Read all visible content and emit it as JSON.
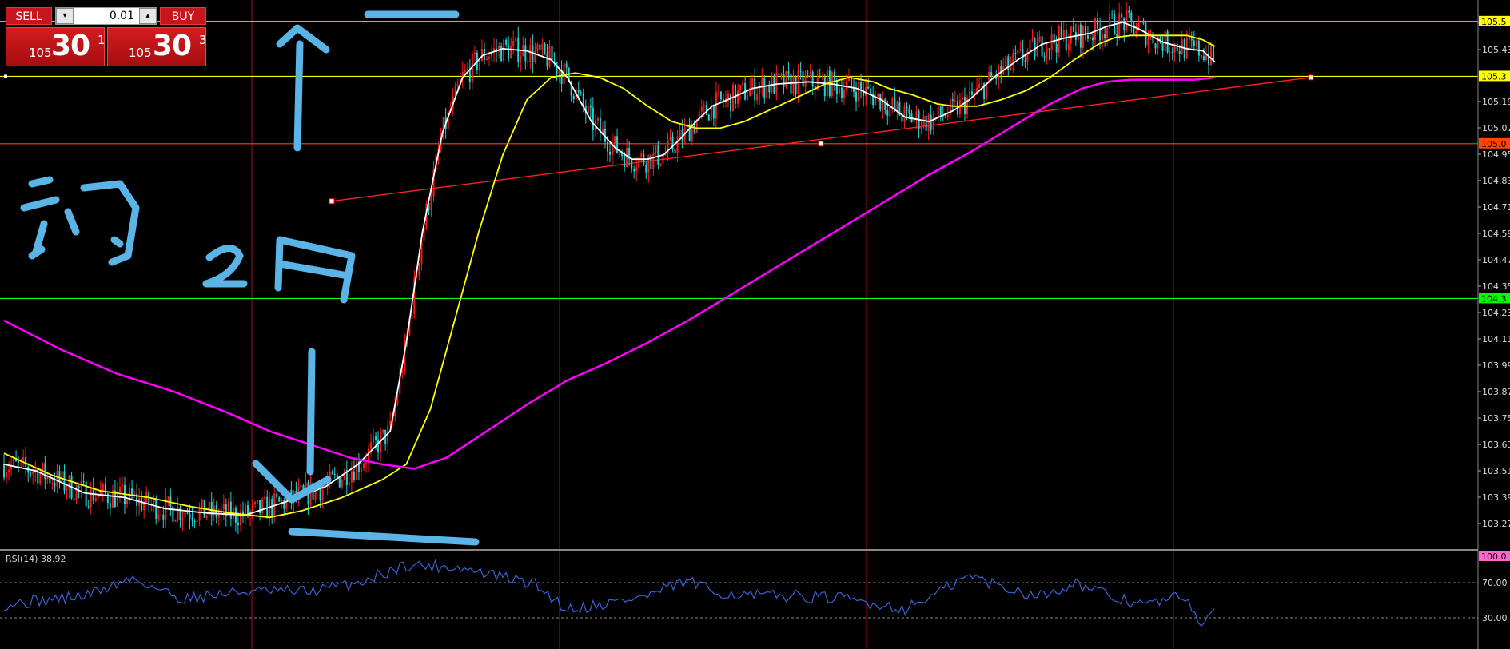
{
  "trade_panel": {
    "sell_label": "SELL",
    "buy_label": "BUY",
    "lot_size": "0.01",
    "bid": {
      "prefix": "105",
      "big": "30",
      "sup": "1"
    },
    "ask": {
      "prefix": "105",
      "big": "30",
      "sup": "3"
    }
  },
  "price_axis": {
    "tick_labels": [
      "105.55",
      "105.43",
      "105.19",
      "105.07",
      "104.95",
      "104.83",
      "104.71",
      "104.59",
      "104.47",
      "104.35",
      "104.23",
      "104.11",
      "103.99",
      "103.87",
      "103.75",
      "103.63",
      "103.51",
      "103.39",
      "103.27"
    ],
    "highlight_labels": [
      {
        "text": "105.5",
        "price": 105.553,
        "bg": "#ffff00",
        "fg": "#000000"
      },
      {
        "text": "105.3",
        "price": 105.305,
        "bg": "#ffff00",
        "fg": "#000000"
      },
      {
        "text": "105.0",
        "price": 105.0,
        "bg": "#ff4500",
        "fg": "#000000"
      },
      {
        "text": "104.3",
        "price": 104.3,
        "bg": "#00ff00",
        "fg": "#000000"
      }
    ]
  },
  "rsi": {
    "label": "RSI(14) 38.92",
    "tick_labels": [
      "100.00",
      "70.00",
      "30.00"
    ],
    "highlight_label": "100.0"
  },
  "annotation_text": "約 2 円",
  "chart_data": {
    "type": "candlestick",
    "ylim": [
      103.17,
      105.65
    ],
    "horizontal_levels": [
      {
        "price": 105.553,
        "color": "#ffff00"
      },
      {
        "price": 105.305,
        "color": "#ffff00"
      },
      {
        "price": 105.0,
        "color": "#ff4500"
      },
      {
        "price": 104.3,
        "color": "#00ff00"
      }
    ],
    "trend_line": {
      "color": "#ff2020",
      "from_price": 104.74,
      "to_price": 105.3
    },
    "moving_averages": [
      {
        "color": "#ffffff",
        "points": [
          [
            0,
            103.55
          ],
          [
            40,
            103.52
          ],
          [
            100,
            103.42
          ],
          [
            150,
            103.4
          ],
          [
            200,
            103.35
          ],
          [
            250,
            103.33
          ],
          [
            300,
            103.32
          ],
          [
            350,
            103.38
          ],
          [
            400,
            103.45
          ],
          [
            440,
            103.55
          ],
          [
            480,
            103.7
          ],
          [
            500,
            104.1
          ],
          [
            520,
            104.6
          ],
          [
            545,
            105.05
          ],
          [
            570,
            105.3
          ],
          [
            595,
            105.4
          ],
          [
            620,
            105.43
          ],
          [
            650,
            105.42
          ],
          [
            680,
            105.38
          ],
          [
            700,
            105.3
          ],
          [
            730,
            105.1
          ],
          [
            760,
            104.98
          ],
          [
            780,
            104.93
          ],
          [
            800,
            104.93
          ],
          [
            820,
            104.95
          ],
          [
            840,
            105.02
          ],
          [
            860,
            105.1
          ],
          [
            880,
            105.17
          ],
          [
            900,
            105.2
          ],
          [
            930,
            105.25
          ],
          [
            960,
            105.27
          ],
          [
            1000,
            105.28
          ],
          [
            1030,
            105.27
          ],
          [
            1060,
            105.25
          ],
          [
            1090,
            105.2
          ],
          [
            1120,
            105.12
          ],
          [
            1150,
            105.1
          ],
          [
            1180,
            105.15
          ],
          [
            1200,
            105.2
          ],
          [
            1230,
            105.3
          ],
          [
            1260,
            105.38
          ],
          [
            1290,
            105.45
          ],
          [
            1320,
            105.48
          ],
          [
            1350,
            105.5
          ],
          [
            1370,
            105.53
          ],
          [
            1390,
            105.55
          ],
          [
            1410,
            105.52
          ],
          [
            1440,
            105.46
          ],
          [
            1470,
            105.43
          ],
          [
            1490,
            105.42
          ],
          [
            1505,
            105.37
          ]
        ]
      },
      {
        "color": "#ffff00",
        "points": [
          [
            0,
            103.6
          ],
          [
            60,
            103.5
          ],
          [
            120,
            103.43
          ],
          [
            180,
            103.4
          ],
          [
            230,
            103.36
          ],
          [
            280,
            103.33
          ],
          [
            330,
            103.31
          ],
          [
            370,
            103.34
          ],
          [
            420,
            103.4
          ],
          [
            470,
            103.48
          ],
          [
            500,
            103.55
          ],
          [
            530,
            103.8
          ],
          [
            560,
            104.2
          ],
          [
            590,
            104.6
          ],
          [
            620,
            104.95
          ],
          [
            650,
            105.2
          ],
          [
            680,
            105.3
          ],
          [
            710,
            105.32
          ],
          [
            740,
            105.3
          ],
          [
            770,
            105.25
          ],
          [
            800,
            105.17
          ],
          [
            830,
            105.1
          ],
          [
            860,
            105.07
          ],
          [
            890,
            105.07
          ],
          [
            920,
            105.1
          ],
          [
            950,
            105.15
          ],
          [
            980,
            105.2
          ],
          [
            1020,
            105.27
          ],
          [
            1050,
            105.3
          ],
          [
            1080,
            105.28
          ],
          [
            1100,
            105.25
          ],
          [
            1130,
            105.22
          ],
          [
            1160,
            105.18
          ],
          [
            1180,
            105.17
          ],
          [
            1210,
            105.17
          ],
          [
            1240,
            105.2
          ],
          [
            1270,
            105.24
          ],
          [
            1300,
            105.3
          ],
          [
            1330,
            105.38
          ],
          [
            1360,
            105.45
          ],
          [
            1380,
            105.48
          ],
          [
            1400,
            105.49
          ],
          [
            1440,
            105.49
          ],
          [
            1470,
            105.49
          ],
          [
            1490,
            105.47
          ],
          [
            1505,
            105.44
          ]
        ]
      },
      {
        "color": "#ff00ff",
        "points": [
          [
            0,
            104.2
          ],
          [
            70,
            104.07
          ],
          [
            140,
            103.96
          ],
          [
            210,
            103.88
          ],
          [
            280,
            103.78
          ],
          [
            330,
            103.7
          ],
          [
            380,
            103.64
          ],
          [
            430,
            103.58
          ],
          [
            470,
            103.55
          ],
          [
            510,
            103.53
          ],
          [
            550,
            103.58
          ],
          [
            600,
            103.7
          ],
          [
            650,
            103.82
          ],
          [
            700,
            103.93
          ],
          [
            750,
            104.01
          ],
          [
            800,
            104.1
          ],
          [
            850,
            104.2
          ],
          [
            900,
            104.31
          ],
          [
            950,
            104.42
          ],
          [
            1000,
            104.53
          ],
          [
            1050,
            104.64
          ],
          [
            1100,
            104.75
          ],
          [
            1150,
            104.86
          ],
          [
            1200,
            104.96
          ],
          [
            1250,
            105.07
          ],
          [
            1300,
            105.18
          ],
          [
            1340,
            105.25
          ],
          [
            1370,
            105.28
          ],
          [
            1400,
            105.29
          ],
          [
            1440,
            105.29
          ],
          [
            1480,
            105.29
          ],
          [
            1505,
            105.3
          ]
        ]
      }
    ]
  }
}
